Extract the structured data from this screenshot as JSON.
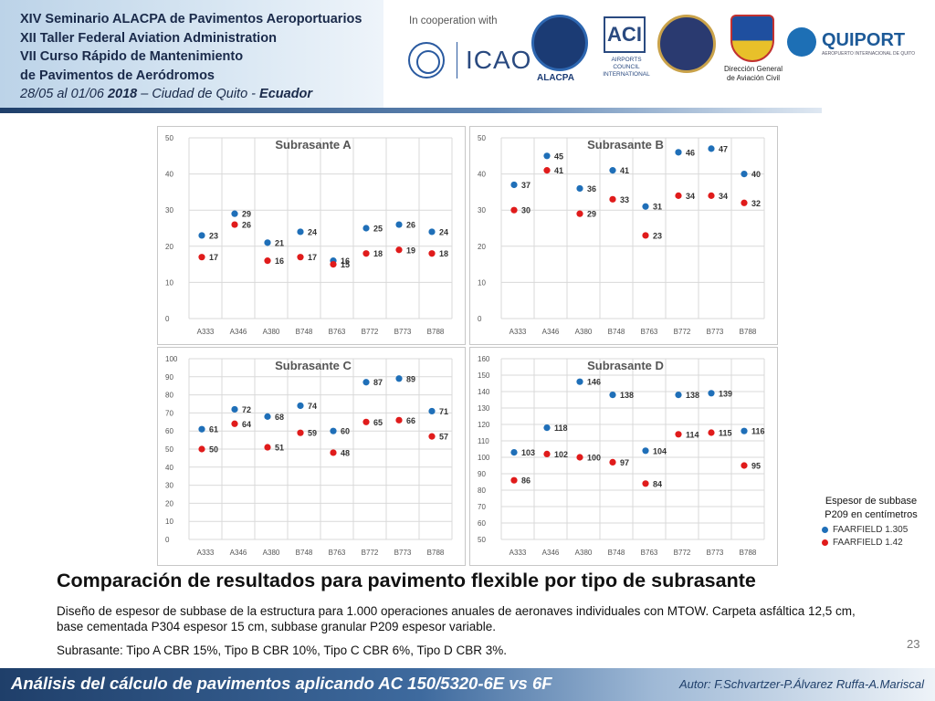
{
  "header": {
    "lines": [
      "XIV Seminario ALACPA de Pavimentos Aeroportuarios",
      "XII Taller Federal Aviation Administration",
      "VII Curso Rápido de Mantenimiento",
      "de Pavimentos de Aeródromos"
    ],
    "date_prefix": "28/05 al 01/06 ",
    "date_year": "2018",
    "date_mid": " – Ciudad de Quito - ",
    "date_country": "Ecuador"
  },
  "logos": {
    "cooperation": "In cooperation with",
    "icao": "ICAO",
    "alacpa": "ALACPA",
    "aci": "ACI",
    "aci_sub": "AIRPORTS COUNCIL INTERNATIONAL",
    "dac": "DAC",
    "dac_sub": "Dirección General de Aviación Civil",
    "quiport": "QUIPORT",
    "quiport_sub": "AEROPUERTO INTERNACIONAL DE QUITO"
  },
  "colors": {
    "series_1305": "#1f6fb8",
    "series_142": "#e01b1b",
    "grid": "#d9d9d9"
  },
  "chart_data": [
    {
      "type": "scatter",
      "title": "Subrasante A",
      "categories": [
        "A333",
        "A346",
        "A380",
        "B748",
        "B763",
        "B772",
        "B773",
        "B788"
      ],
      "ylim": [
        0,
        50
      ],
      "ystep": 10,
      "series": [
        {
          "name": "FAARFIELD 1.305",
          "values": [
            23,
            29,
            21,
            24,
            16,
            25,
            26,
            24
          ]
        },
        {
          "name": "FAARFIELD 1.42",
          "values": [
            17,
            26,
            16,
            17,
            15,
            18,
            19,
            18
          ]
        }
      ]
    },
    {
      "type": "scatter",
      "title": "Subrasante B",
      "categories": [
        "A333",
        "A346",
        "A380",
        "B748",
        "B763",
        "B772",
        "B773",
        "B788"
      ],
      "ylim": [
        0,
        50
      ],
      "ystep": 10,
      "series": [
        {
          "name": "FAARFIELD 1.305",
          "values": [
            37,
            45,
            36,
            41,
            31,
            46,
            47,
            40
          ]
        },
        {
          "name": "FAARFIELD 1.42",
          "values": [
            30,
            41,
            29,
            33,
            23,
            34,
            34,
            32
          ]
        }
      ]
    },
    {
      "type": "scatter",
      "title": "Subrasante C",
      "categories": [
        "A333",
        "A346",
        "A380",
        "B748",
        "B763",
        "B772",
        "B773",
        "B788"
      ],
      "ylim": [
        0,
        100
      ],
      "ystep": 10,
      "series": [
        {
          "name": "FAARFIELD 1.305",
          "values": [
            61,
            72,
            68,
            74,
            60,
            87,
            89,
            71
          ]
        },
        {
          "name": "FAARFIELD 1.42",
          "values": [
            50,
            64,
            51,
            59,
            48,
            65,
            66,
            57
          ]
        }
      ]
    },
    {
      "type": "scatter",
      "title": "Subrasante D",
      "categories": [
        "A333",
        "A346",
        "A380",
        "B748",
        "B763",
        "B772",
        "B773",
        "B788"
      ],
      "ylim": [
        50,
        160
      ],
      "ystep": 10,
      "series": [
        {
          "name": "FAARFIELD 1.305",
          "values": [
            103,
            118,
            146,
            138,
            104,
            138,
            139,
            116
          ]
        },
        {
          "name": "FAARFIELD 1.42",
          "values": [
            86,
            102,
            100,
            97,
            84,
            114,
            115,
            95
          ]
        }
      ]
    }
  ],
  "legend": {
    "caption_line1": "Espesor de subbase",
    "caption_line2": "P209 en centímetros",
    "item1": "FAARFIELD 1.305",
    "item2": "FAARFIELD 1.42"
  },
  "main_title": "Comparación de resultados para pavimento flexible por tipo de subrasante",
  "description": "Diseño de espesor de subbase de la estructura para 1.000 operaciones anuales de aeronaves individuales con MTOW. Carpeta asfáltica 12,5 cm, base cementada P304 espesor 15 cm, subbase granular P209 espesor variable.",
  "subrasantes": "Subrasante: Tipo A CBR 15%, Tipo B CBR 10%, Tipo C CBR 6%, Tipo D CBR 3%.",
  "page_number": "23",
  "footer": {
    "left": "Análisis del cálculo de pavimentos aplicando AC 150/5320-6E vs 6F",
    "right": "Autor: F.Schvartzer-P.Álvarez Ruffa-A.Mariscal"
  }
}
